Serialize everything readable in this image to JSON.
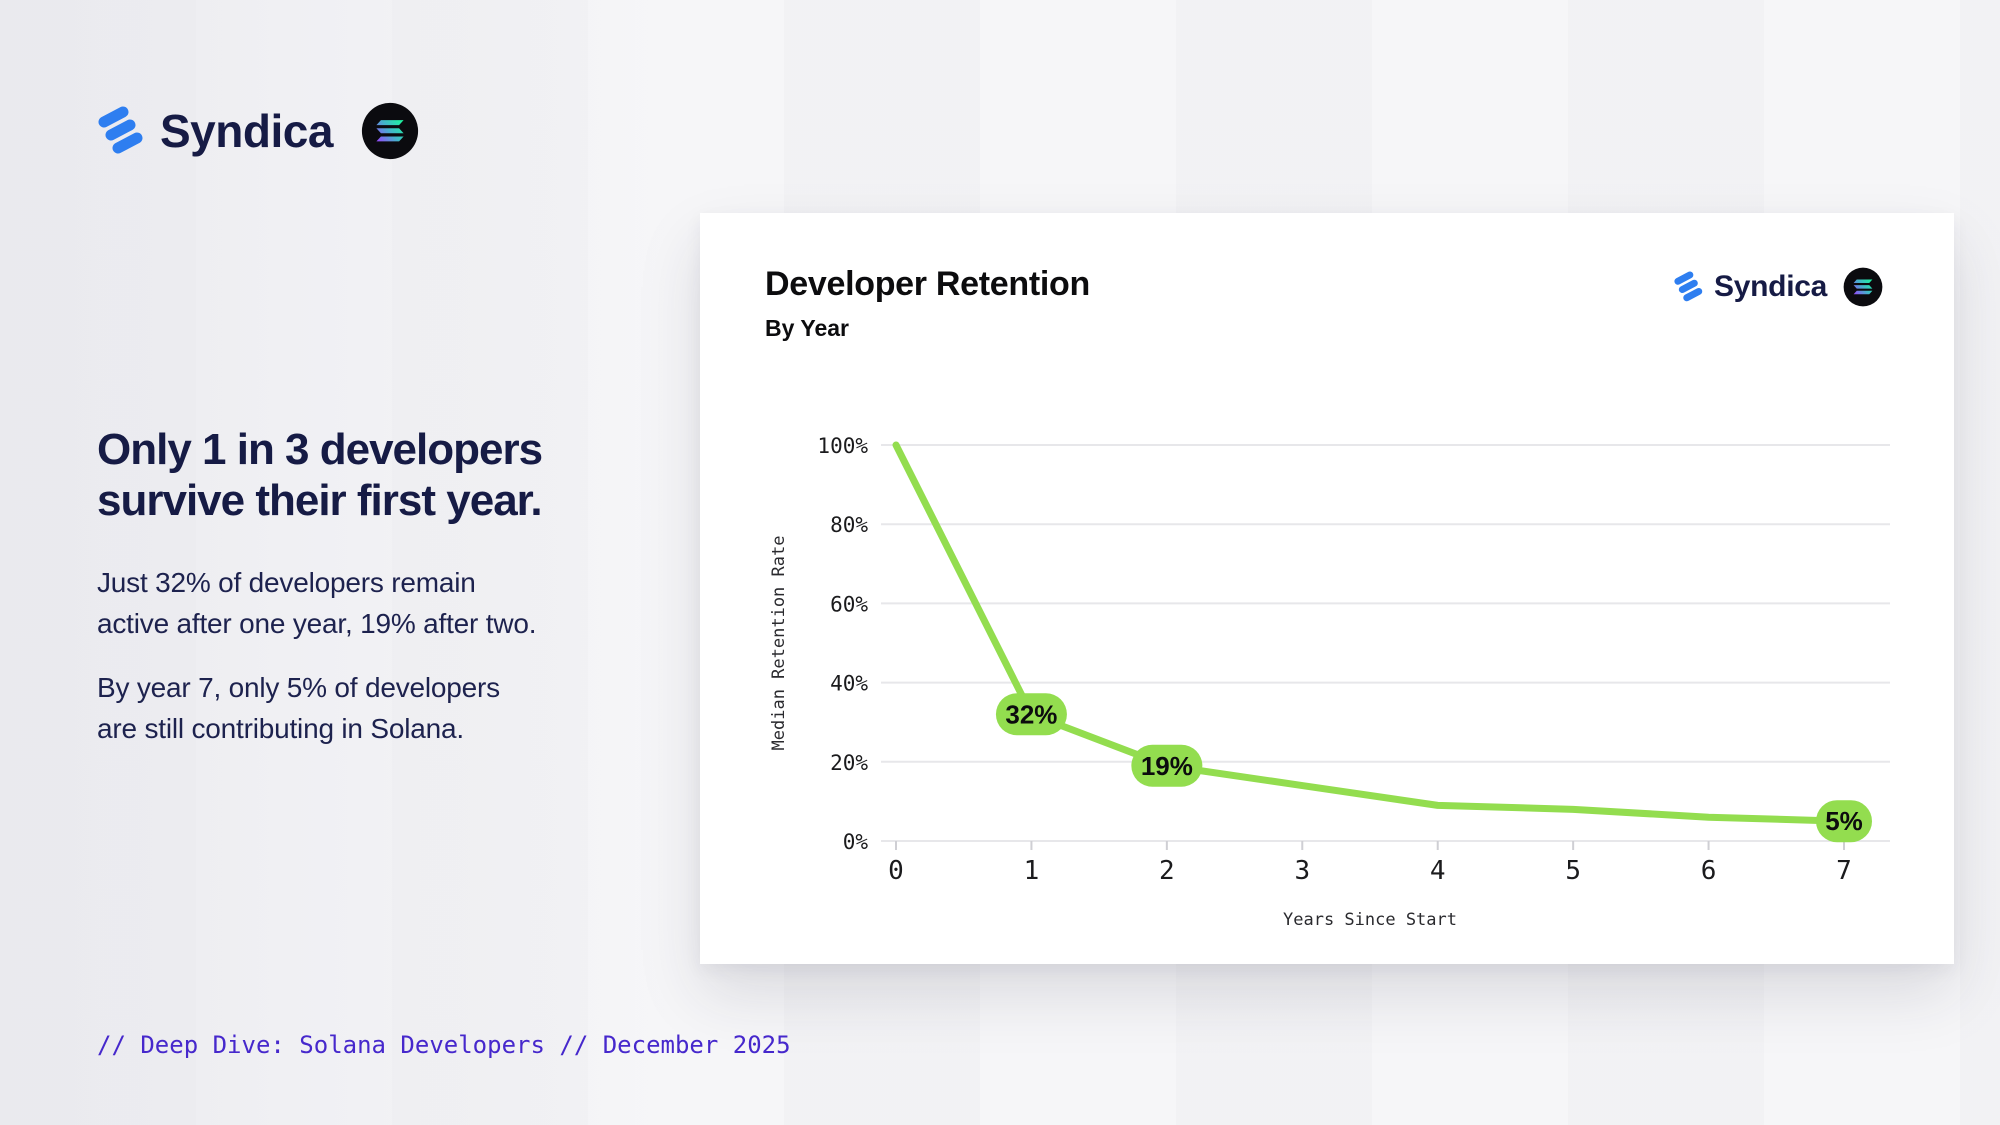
{
  "colors": {
    "navy": "#161b45",
    "navy_soft": "#1d224e",
    "syndica_blue": "#2e7ef0",
    "footer_purple": "#4628cc",
    "accent_green": "#93dd4f",
    "card_bg": "#ffffff",
    "page_bg": "#f6f6f8"
  },
  "brand": {
    "wordmark": "Syndica"
  },
  "icons": {
    "syndica": "syndica-dots-icon",
    "solana": "solana-badge-icon"
  },
  "intro": {
    "headline": "Only 1 in 3 developers\nsurvive their first year.",
    "paragraph1": "Just 32% of developers remain\nactive after one year, 19% after two.",
    "paragraph2": "By year 7, only 5% of developers\nare still contributing in Solana."
  },
  "chart_data": {
    "type": "line",
    "title": "Developer Retention",
    "subtitle": "By Year",
    "xlabel": "Years Since Start",
    "ylabel": "Median Retention Rate",
    "x": [
      0,
      1,
      2,
      3,
      4,
      5,
      6,
      7
    ],
    "values": [
      100,
      32,
      19,
      14,
      9,
      8,
      6,
      5
    ],
    "point_labels": [
      {
        "x": 1,
        "label": "32%"
      },
      {
        "x": 2,
        "label": "19%"
      },
      {
        "x": 7,
        "label": "5%"
      }
    ],
    "xticks": [
      0,
      1,
      2,
      3,
      4,
      5,
      6,
      7
    ],
    "ytick_values": [
      0,
      20,
      40,
      60,
      80,
      100
    ],
    "ytick_labels": [
      "0%",
      "20%",
      "40%",
      "60%",
      "80%",
      "100%"
    ],
    "xlim": [
      0,
      7
    ],
    "ylim": [
      0,
      100
    ],
    "grid": true,
    "legend": "none",
    "line_color": "#93dd4f"
  },
  "footer": {
    "caption": "// Deep Dive: Solana Developers // December 2025"
  }
}
